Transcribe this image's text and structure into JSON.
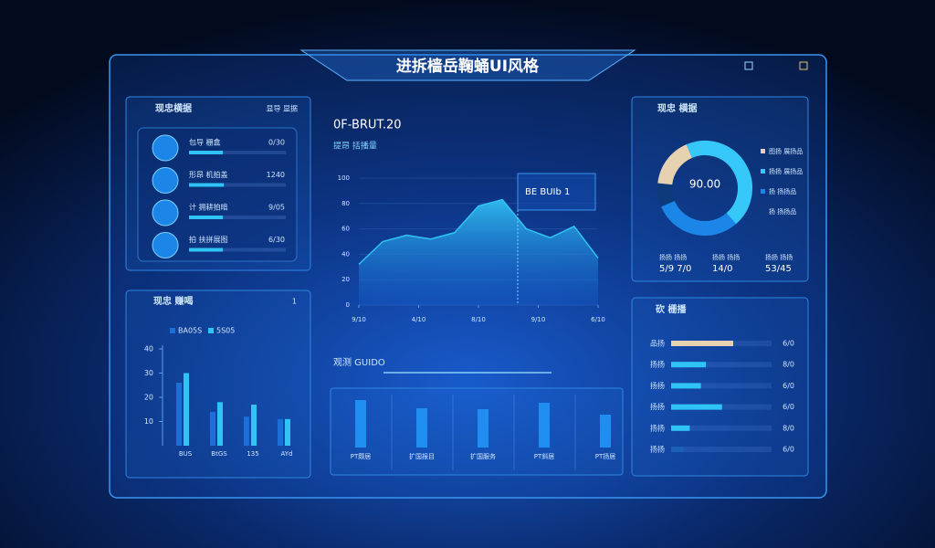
{
  "header": {
    "title": "进拆樯岳鞠蛹UI风格"
  },
  "stats_panel": {
    "title": "现忠横据",
    "action": "显导 显据",
    "rows": [
      {
        "label": "包导 栅盒",
        "value": "0/30",
        "progress": 35
      },
      {
        "label": "形昂 机拍盖",
        "value": "1240",
        "progress": 36
      },
      {
        "label": "计 拥耕拍暗",
        "value": "9/05",
        "progress": 35
      },
      {
        "label": "拍 扶拼展图",
        "value": "6/30",
        "progress": 35
      }
    ]
  },
  "bar_panel": {
    "title": "现忠 赚喝",
    "action": "1",
    "chart": {
      "type": "bar",
      "categories": [
        "BUS",
        "BtGS",
        "135",
        "AYd"
      ],
      "series": [
        {
          "name": "BA05S",
          "color": "#1c6fd6",
          "values": [
            26,
            14,
            12,
            11
          ]
        },
        {
          "name": "5S05",
          "color": "#2fc4f5",
          "values": [
            30,
            18,
            17,
            11
          ]
        }
      ],
      "ylim": [
        0,
        40
      ],
      "yticks": [
        10,
        20,
        30,
        40
      ]
    }
  },
  "area_panel": {
    "title": "0F-BRUT.20",
    "subtitle": "提昂 括播量",
    "tooltip": "BE BUIb 1",
    "chart": {
      "type": "area",
      "x": [
        0,
        1,
        2,
        3,
        4,
        5,
        6,
        7,
        8,
        9,
        10
      ],
      "values": [
        32,
        50,
        55,
        52,
        57,
        78,
        83,
        60,
        53,
        62,
        37
      ],
      "color": "#2fc4f5",
      "xlim": [
        0,
        10
      ],
      "xticks": [
        {
          "value": 0,
          "label": "9/10"
        },
        {
          "value": 2.5,
          "label": "4/10"
        },
        {
          "value": 5,
          "label": "8/10"
        },
        {
          "value": 7.5,
          "label": "9/10"
        },
        {
          "value": 10,
          "label": "6/10"
        }
      ],
      "ylim": [
        0,
        100
      ],
      "yticks": [
        0,
        20,
        40,
        60,
        80,
        100
      ],
      "grid": true
    }
  },
  "column_panel": {
    "title": "观测 GUIDO",
    "chart": {
      "type": "bar",
      "categories": [
        "PT颇居",
        "扩国报目",
        "扩国服务",
        "PT斜居",
        "PT扬居"
      ],
      "values": [
        52,
        43,
        42,
        49,
        36
      ],
      "color": "#1f8ef0",
      "ylim": [
        0,
        60
      ]
    }
  },
  "donut_panel": {
    "title": "现忠 横据",
    "center": "90.00",
    "chart": {
      "type": "pie",
      "categories": [
        "图扬 展扬品",
        "扬扬 展扬品",
        "扬 扬扬品",
        "扬 扬扬品"
      ],
      "values": [
        17,
        45,
        30,
        8
      ],
      "colors": [
        "#e6d2b0",
        "#36c8f8",
        "#1b86e8",
        "#0d3a7a"
      ]
    },
    "stats": [
      {
        "label": "扬扬 扬扬",
        "value": "5/9 7/0"
      },
      {
        "label": "扬扬 扬扬",
        "value": "14/0"
      },
      {
        "label": "扬扬 扬扬",
        "value": "53/45"
      }
    ]
  },
  "list_panel": {
    "title": "砍 栅播",
    "rows": [
      {
        "label": "品扬",
        "value": "6/0",
        "progress": 50,
        "color": "#e6d2b0"
      },
      {
        "label": "扬扬",
        "value": "8/0",
        "progress": 28,
        "color": "#2fc4f5"
      },
      {
        "label": "扬扬",
        "value": "6/0",
        "progress": 24,
        "color": "#2fc4f5"
      },
      {
        "label": "扬扬",
        "value": "6/0",
        "progress": 41,
        "color": "#2fc4f5"
      },
      {
        "label": "扬扬",
        "value": "8/0",
        "progress": 15,
        "color": "#2fc4f5"
      },
      {
        "label": "扬扬",
        "value": "6/0",
        "progress": 10,
        "color": "#1b5fb8"
      }
    ]
  }
}
